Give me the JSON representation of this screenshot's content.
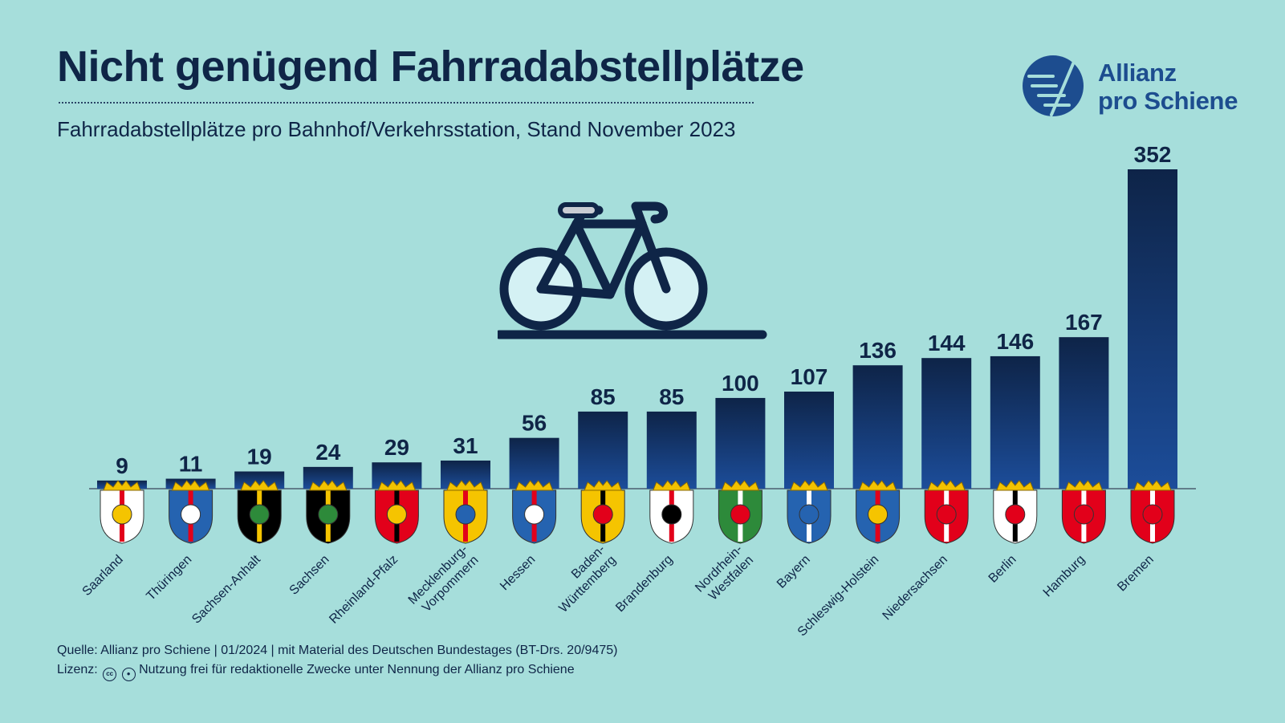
{
  "header": {
    "title": "Nicht genügend Fahrradabstellplätze",
    "subtitle": "Fahrradabstellplätze pro Bahnhof/Verkehrsstation, Stand November 2023"
  },
  "logo": {
    "line1": "Allianz",
    "line2": "pro Schiene"
  },
  "footer": {
    "source": "Quelle: Allianz pro Schiene | 01/2024 | mit Material des Deutschen Bundestages (BT-Drs. 20/9475)",
    "license_label": "Lizenz:",
    "license_icon_cc": "cc",
    "license_text": "Nutzung frei für redaktionelle Zwecke unter Nennung der Allianz pro Schiene"
  },
  "chart_data": {
    "type": "bar",
    "categories": [
      "Saarland",
      "Thüringen",
      "Sachsen-Anhalt",
      "Sachsen",
      "Rheinland-Pfalz",
      "Mecklenburg-Vorpommern",
      "Hessen",
      "Baden-Württemberg",
      "Brandenburg",
      "Nordrhein-Westfalen",
      "Bayern",
      "Schleswig-Holstein",
      "Niedersachsen",
      "Berlin",
      "Hamburg",
      "Bremen"
    ],
    "category_lines": [
      [
        "Saarland"
      ],
      [
        "Thüringen"
      ],
      [
        "Sachsen-Anhalt"
      ],
      [
        "Sachsen"
      ],
      [
        "Rheinland-Pfalz"
      ],
      [
        "Mecklenburg-",
        "Vorpommern"
      ],
      [
        "Hessen"
      ],
      [
        "Baden-",
        "Württemberg"
      ],
      [
        "Brandenburg"
      ],
      [
        "Nordrhein-",
        "Westfalen"
      ],
      [
        "Bayern"
      ],
      [
        "Schleswig-Holstein"
      ],
      [
        "Niedersachsen"
      ],
      [
        "Berlin"
      ],
      [
        "Hamburg"
      ],
      [
        "Bremen"
      ]
    ],
    "values": [
      9,
      11,
      19,
      24,
      29,
      31,
      56,
      85,
      85,
      100,
      107,
      136,
      144,
      146,
      167,
      352
    ],
    "value_labels": [
      "9",
      "11",
      "19",
      "24",
      "29",
      "31",
      "56",
      "85",
      "85",
      "100",
      "107",
      "136",
      "144",
      "146",
      "167",
      "352"
    ],
    "ylim": [
      0,
      352
    ],
    "grid": false,
    "legend": "none",
    "decorations": "state coat-of-arms icon below each bar; bicycle illustration above chart",
    "colors": {
      "background": "#a6dedb",
      "bar_top": "#0e2448",
      "bar_bottom": "#1c4d9a",
      "text": "#0f2547",
      "logo": "#1d4d8f"
    }
  }
}
